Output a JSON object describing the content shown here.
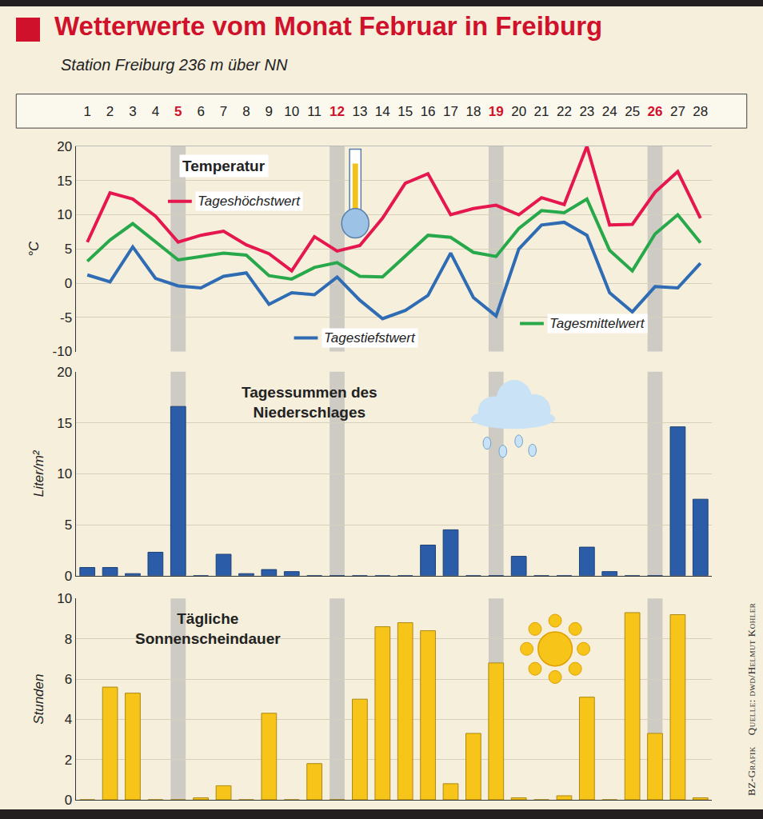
{
  "title": "Wetterwerte vom Monat Februar in Freiburg",
  "subtitle": "Station Freiburg 236 m über NN",
  "source": [
    "BZ-Grafik",
    "Quelle: dwd/Helmut Kohler"
  ],
  "highlight_days": [
    5,
    12,
    19,
    26
  ],
  "chart_data": [
    {
      "type": "line",
      "title": "Temperatur",
      "ylabel": "°C",
      "x": [
        1,
        2,
        3,
        4,
        5,
        6,
        7,
        8,
        9,
        10,
        11,
        12,
        13,
        14,
        15,
        16,
        17,
        18,
        19,
        20,
        21,
        22,
        23,
        24,
        25,
        26,
        27,
        28
      ],
      "xlim": [
        0.5,
        28.5
      ],
      "xticks": [
        1,
        2,
        3,
        4,
        5,
        6,
        7,
        8,
        9,
        10,
        11,
        12,
        13,
        14,
        15,
        16,
        17,
        18,
        19,
        20,
        21,
        22,
        23,
        24,
        25,
        26,
        27,
        28
      ],
      "ylim": [
        -10,
        20
      ],
      "yticks": [
        -10,
        -5,
        0,
        5,
        10,
        15,
        20
      ],
      "grid": true,
      "series": [
        {
          "name": "Tageshöchstwert",
          "color": "#e5174e",
          "values": [
            6,
            13.2,
            12.3,
            9.8,
            6,
            7,
            7.6,
            5.6,
            4.3,
            1.8,
            6.8,
            4.7,
            5.5,
            9.5,
            14.6,
            16,
            10,
            10.9,
            11.4,
            10,
            12.5,
            11.5,
            20,
            8.5,
            8.6,
            13.3,
            16.3,
            9.5
          ]
        },
        {
          "name": "Tagesmittelwert",
          "color": "#27a84a",
          "values": [
            3.2,
            6.3,
            8.7,
            6,
            3.4,
            3.9,
            4.4,
            4.1,
            1.1,
            0.6,
            2.3,
            3,
            1,
            0.9,
            3.9,
            7,
            6.7,
            4.5,
            3.9,
            8,
            10.6,
            10.3,
            12.3,
            4.8,
            1.8,
            7.2,
            10,
            5.9
          ]
        },
        {
          "name": "Tagestiefstwert",
          "color": "#2f6cb4",
          "values": [
            1.2,
            0.2,
            5.3,
            0.7,
            -0.4,
            -0.7,
            1,
            1.5,
            -3.1,
            -1.4,
            -1.7,
            0.9,
            -2.5,
            -5.2,
            -4,
            -1.8,
            4.4,
            -2.1,
            -4.8,
            5,
            8.5,
            8.9,
            7,
            -1.4,
            -4.2,
            -0.5,
            -0.7,
            2.9
          ]
        }
      ]
    },
    {
      "type": "bar",
      "title": "Tagessummen des Niederschlages",
      "ylabel": "Liter/m²",
      "x": [
        1,
        2,
        3,
        4,
        5,
        6,
        7,
        8,
        9,
        10,
        11,
        12,
        13,
        14,
        15,
        16,
        17,
        18,
        19,
        20,
        21,
        22,
        23,
        24,
        25,
        26,
        27,
        28
      ],
      "xlim": [
        0.5,
        28.5
      ],
      "values": [
        0.8,
        0.8,
        0.2,
        2.3,
        16.6,
        0,
        2.1,
        0.2,
        0.6,
        0.4,
        0,
        0,
        0,
        0,
        0,
        3,
        4.5,
        0,
        0,
        1.9,
        0,
        0,
        2.8,
        0.4,
        0,
        0,
        14.6,
        7.5
      ],
      "color": "#2a5ca8",
      "ylim": [
        0,
        20
      ],
      "yticks": [
        0,
        5,
        10,
        15,
        20
      ],
      "grid": true,
      "tick_labels": "y"
    },
    {
      "type": "bar",
      "title": "Tägliche Sonnenscheindauer",
      "ylabel": "Stunden",
      "x": [
        1,
        2,
        3,
        4,
        5,
        6,
        7,
        8,
        9,
        10,
        11,
        12,
        13,
        14,
        15,
        16,
        17,
        18,
        19,
        20,
        21,
        22,
        23,
        24,
        25,
        26,
        27,
        28
      ],
      "xlim": [
        0.5,
        28.5
      ],
      "values": [
        0,
        5.6,
        5.3,
        0,
        0,
        0.1,
        0.7,
        0,
        4.3,
        0,
        1.8,
        0,
        5,
        8.6,
        8.8,
        8.4,
        0.8,
        3.3,
        6.8,
        0.1,
        0,
        0.2,
        5.1,
        0,
        9.3,
        3.3,
        9.2,
        0.1
      ],
      "color": "#f7c41a",
      "ylim": [
        0,
        10
      ],
      "yticks": [
        0,
        2,
        4,
        6,
        8,
        10
      ],
      "grid": true,
      "tick_labels": "y"
    }
  ]
}
